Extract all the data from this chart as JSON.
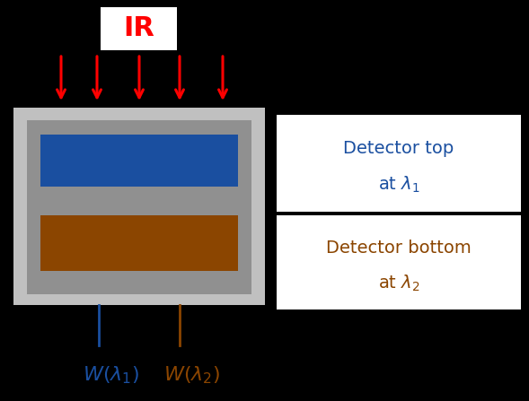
{
  "bg_color": "#000000",
  "box_outer_color": "#c0c0c0",
  "box_inner_color": "#909090",
  "detector_top_color": "#1a4fa0",
  "detector_bottom_color": "#8b4500",
  "ir_label_color": "#ff0000",
  "arrow_color": "#ff0000",
  "wire_blue_color": "#1a4fa0",
  "wire_brown_color": "#8b4500",
  "ir_box_color": "#ffffff",
  "legend_box_color": "#ffffff",
  "legend_border_color": "#000000",
  "ir_text": "IR",
  "det_top_line1": "Detector top",
  "det_bot_line1": "Detector bottom",
  "num_arrows": 5,
  "fig_w": 5.89,
  "fig_h": 4.47,
  "dpi": 100
}
